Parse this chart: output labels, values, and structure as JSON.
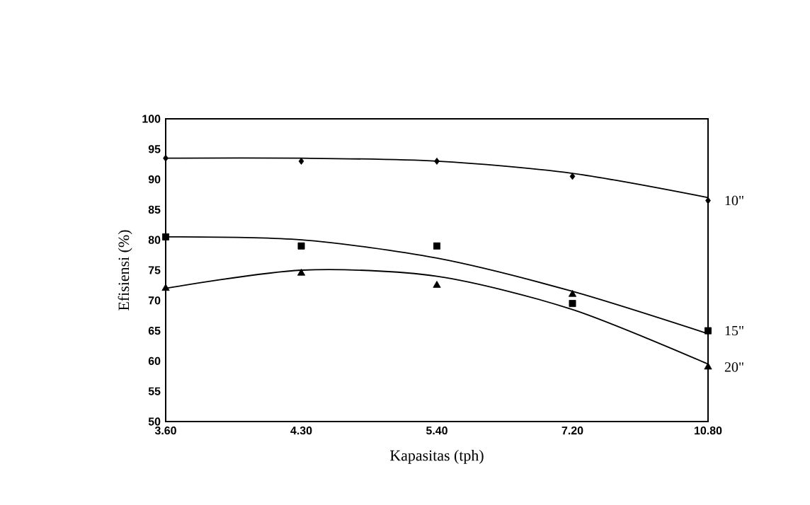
{
  "chart_data": {
    "type": "scatter",
    "xlabel": "Kapasitas (tph)",
    "ylabel": "Efisiensi (%)",
    "categories": [
      "3.60",
      "4.30",
      "5.40",
      "7.20",
      "10.80"
    ],
    "ylim": [
      50,
      100
    ],
    "yticks": [
      50,
      55,
      60,
      65,
      70,
      75,
      80,
      85,
      90,
      95,
      100
    ],
    "series": [
      {
        "name": "10\"",
        "marker": "diamond",
        "color": "#000000",
        "values": [
          93.5,
          93,
          93,
          90.5,
          86.5
        ]
      },
      {
        "name": "15\"",
        "marker": "square",
        "color": "#000000",
        "values": [
          80.5,
          79,
          79,
          69.5,
          65
        ]
      },
      {
        "name": "20\"",
        "marker": "triangle",
        "color": "#000000",
        "values": [
          72,
          74.5,
          72.5,
          71,
          59
        ]
      },
      {
        "type": "line",
        "color": "#000000",
        "values": [
          93.5,
          93.5,
          93,
          91,
          87
        ]
      },
      {
        "type": "line",
        "color": "#000000",
        "values": [
          80.5,
          80,
          77,
          71.5,
          64.5
        ]
      },
      {
        "type": "line",
        "color": "#000000",
        "values": [
          72,
          75,
          74,
          68.5,
          59.5
        ]
      }
    ]
  }
}
